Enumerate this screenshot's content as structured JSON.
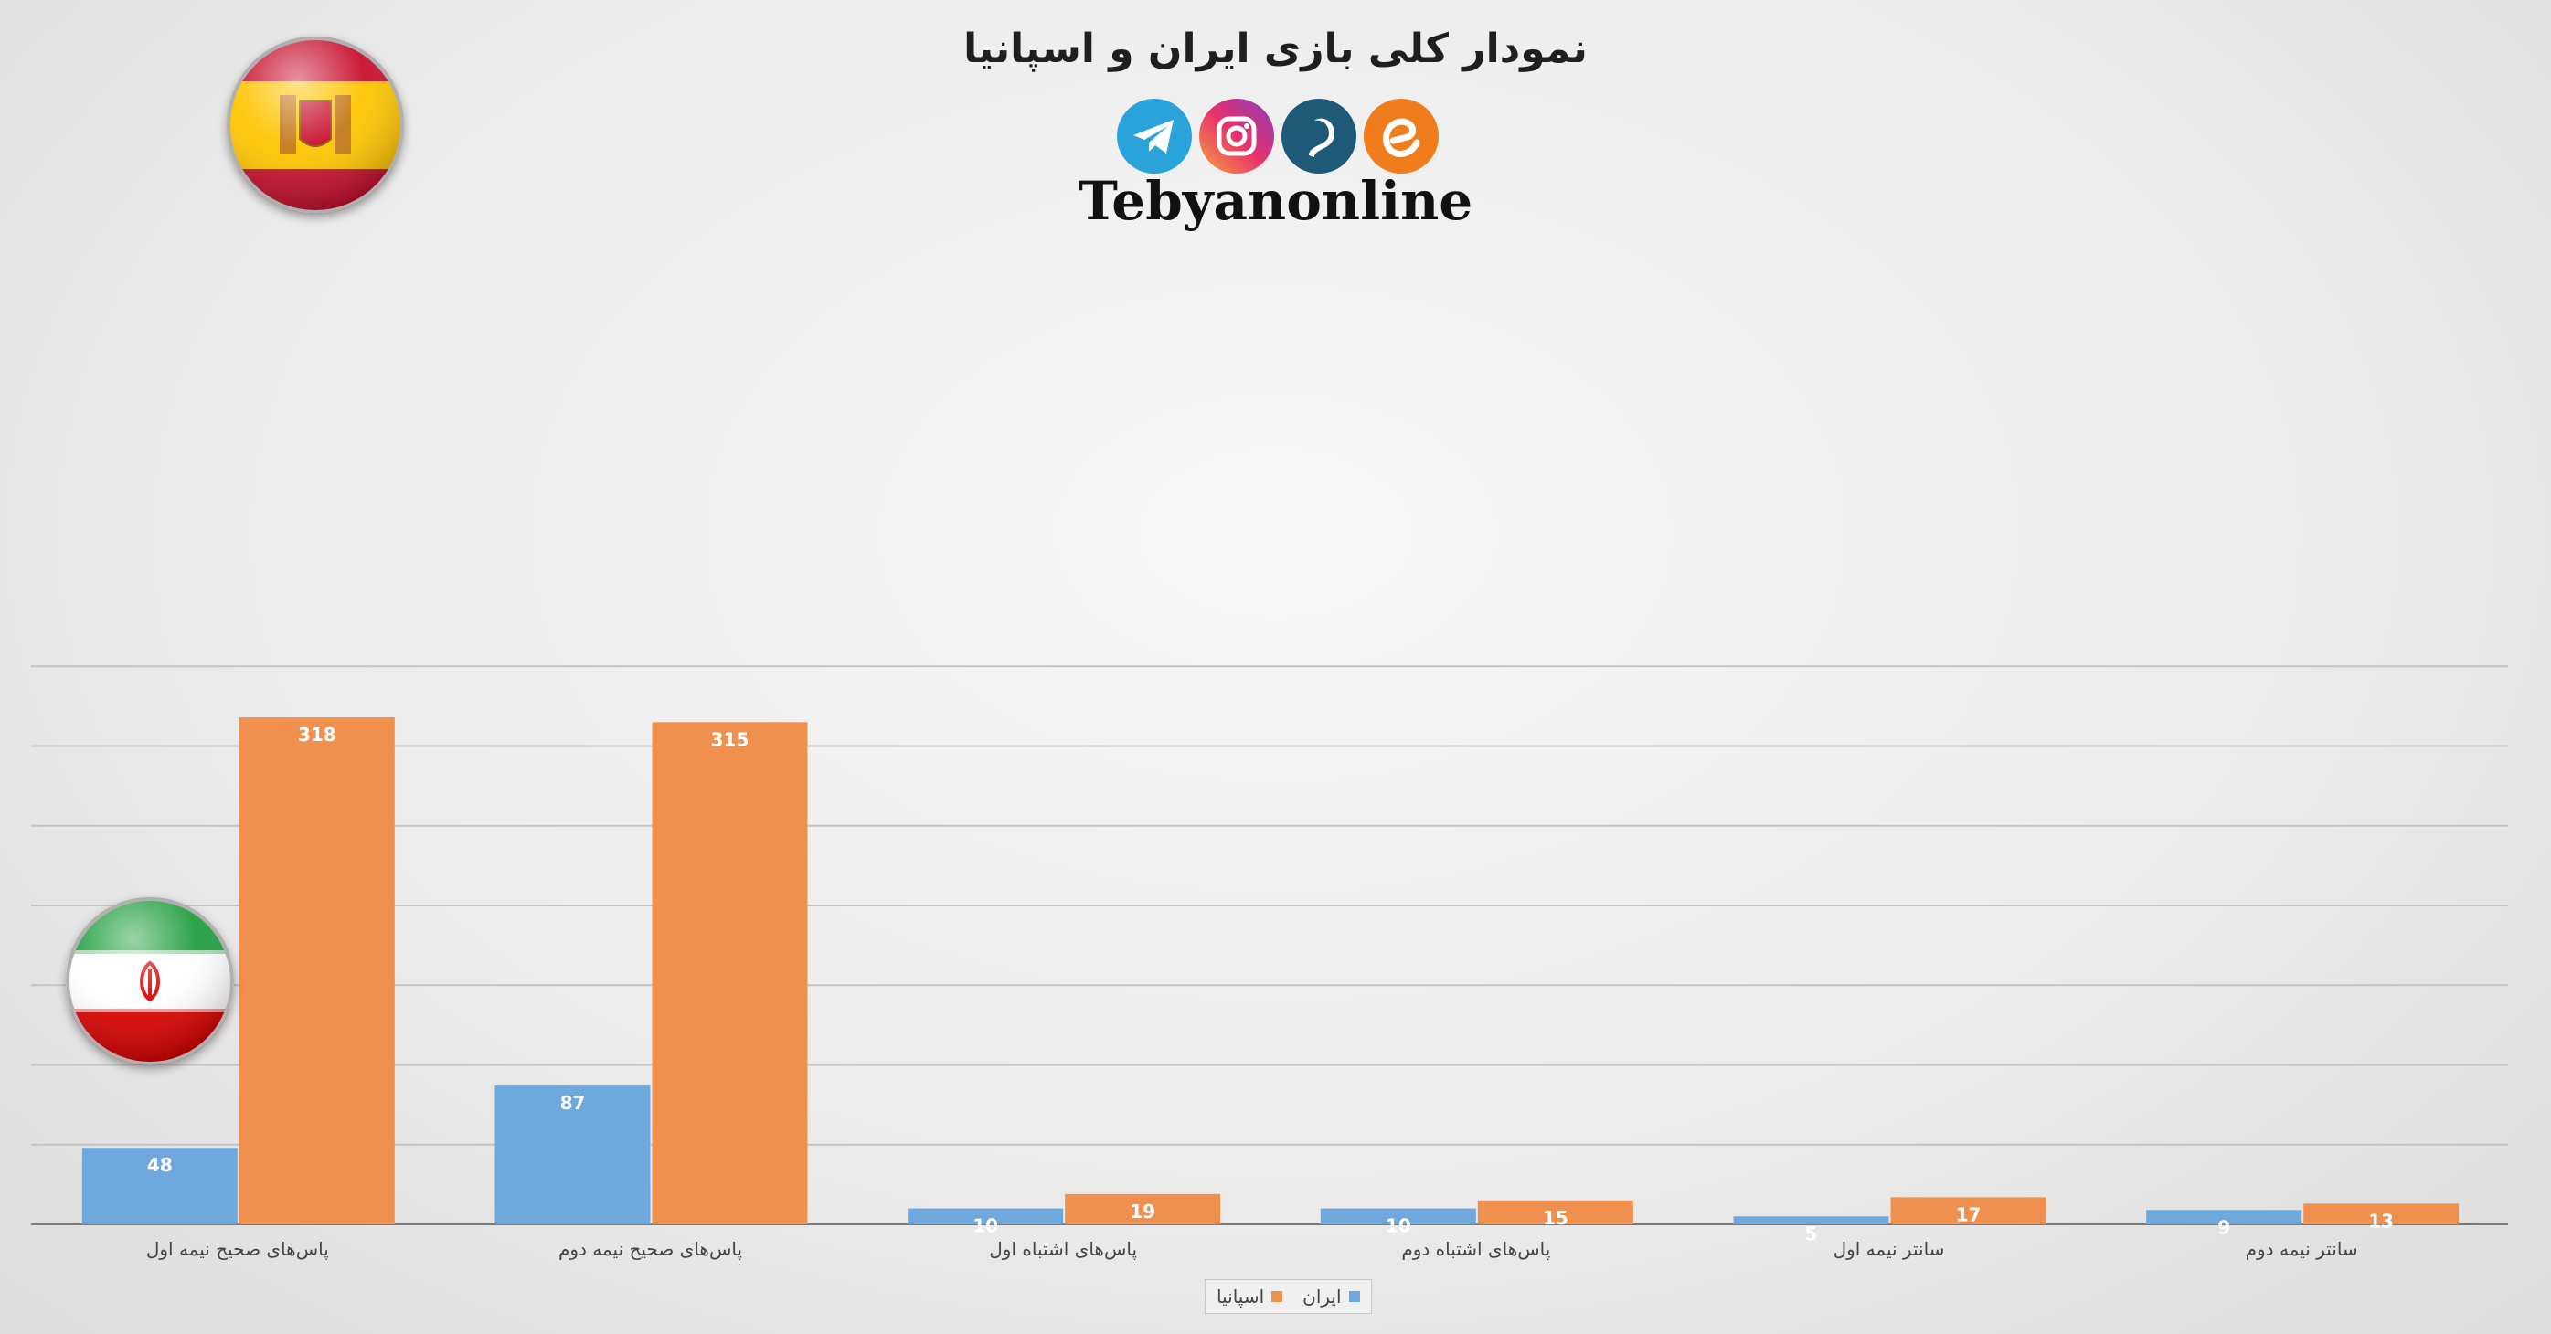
{
  "header": {
    "title": "نمودار کلی بازی ایران و اسپانیا",
    "brand": "Tebyanonline",
    "social_icons": [
      "telegram-icon",
      "instagram-icon",
      "soroush-icon",
      "eitaa-icon"
    ]
  },
  "colors": {
    "iran": "#6fa8dc",
    "spain": "#f0904e",
    "grid": "#c4c4c4",
    "axis": "#7a7a7a"
  },
  "chart_data": {
    "type": "bar",
    "title": "نمودار کلی بازی ایران و اسپانیا",
    "categories": [
      "پاس‌های صحیح نیمه اول",
      "پاس‌های صحیح نیمه دوم",
      "پاس‌های اشتباه اول",
      "پاس‌های اشتباه دوم",
      "سانتر نیمه اول",
      "سانتر نیمه دوم"
    ],
    "series": [
      {
        "name": "ایران",
        "values": [
          48,
          87,
          10,
          10,
          5,
          9
        ]
      },
      {
        "name": "اسپانیا",
        "values": [
          318,
          315,
          19,
          15,
          17,
          13
        ]
      }
    ],
    "ylim": [
      0,
      350
    ],
    "y_gridlines": [
      50,
      100,
      150,
      200,
      250,
      300,
      350
    ],
    "grid": true,
    "legend_position": "bottom",
    "xlabel": "",
    "ylabel": ""
  }
}
